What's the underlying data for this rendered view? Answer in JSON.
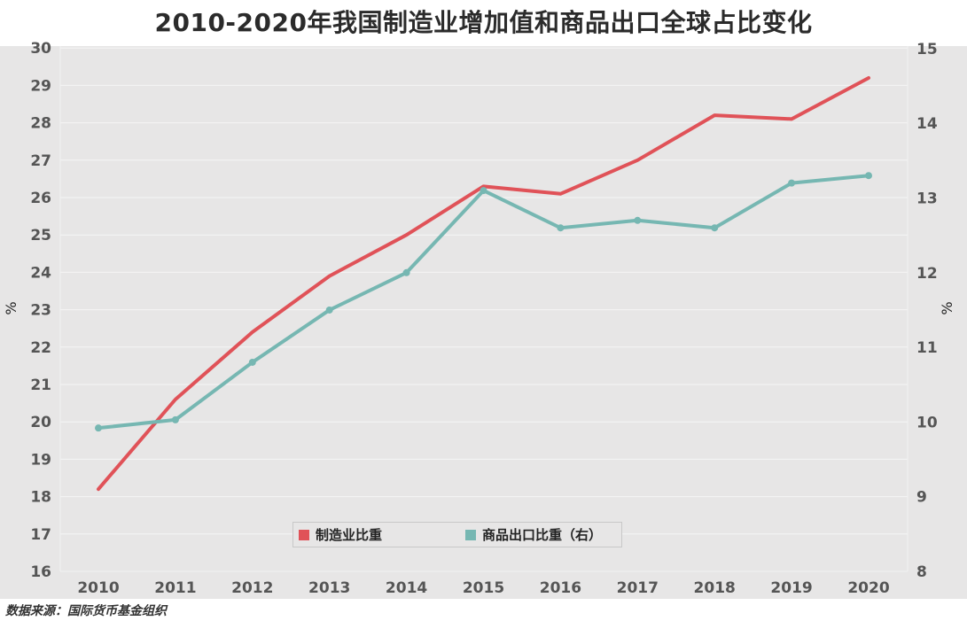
{
  "title": "2010-2020年我国制造业增加值和商品出口全球占比变化",
  "source": "数据来源：国际货币基金组织",
  "colors": {
    "manufacturing": "#e05258",
    "exports": "#76b7b2",
    "background": "#e7e6e6",
    "gridline": "#f5f5f5",
    "axis_text": "#555555"
  },
  "chart_data": {
    "type": "line",
    "x": [
      "2010",
      "2011",
      "2012",
      "2013",
      "2014",
      "2015",
      "2016",
      "2017",
      "2018",
      "2019",
      "2020"
    ],
    "series": [
      {
        "name": "制造业比重",
        "axis": "left",
        "values": [
          18.2,
          20.6,
          22.4,
          23.9,
          25.0,
          26.3,
          26.1,
          27.0,
          28.2,
          28.1,
          29.2
        ],
        "markers": false
      },
      {
        "name": "商品出口比重（右）",
        "axis": "right",
        "values": [
          9.92,
          10.03,
          10.8,
          11.5,
          12.0,
          13.1,
          12.6,
          12.7,
          12.6,
          13.2,
          13.3
        ],
        "markers": true
      }
    ],
    "ylabel": "%",
    "y2label": "%",
    "ylim": [
      16,
      30
    ],
    "y2lim": [
      8,
      15
    ],
    "yticks": [
      "16",
      "17",
      "18",
      "19",
      "20",
      "21",
      "22",
      "23",
      "24",
      "25",
      "26",
      "27",
      "28",
      "29",
      "30"
    ],
    "y2ticks": [
      "8",
      "9",
      "10",
      "11",
      "12",
      "13",
      "14",
      "15"
    ],
    "grid": true,
    "legend_position": "bottom-center"
  }
}
